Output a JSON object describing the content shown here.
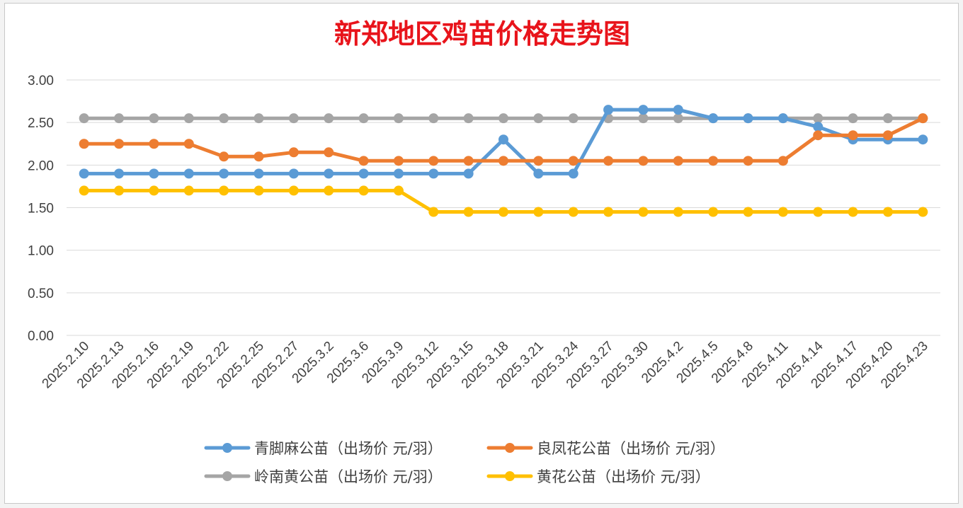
{
  "chart_data": {
    "type": "line",
    "title": "新郑地区鸡苗价格走势图",
    "xlabel": "",
    "ylabel": "",
    "ylim": [
      0,
      3
    ],
    "y_ticks": [
      "0.00",
      "0.50",
      "1.00",
      "1.50",
      "2.00",
      "2.50",
      "3.00"
    ],
    "grid": true,
    "legend_position": "bottom",
    "categories": [
      "2025.2.10",
      "2025.2.13",
      "2025.2.16",
      "2025.2.19",
      "2025.2.22",
      "2025.2.25",
      "2025.2.27",
      "2025.3.2",
      "2025.3.6",
      "2025.3.9",
      "2025.3.12",
      "2025.3.15",
      "2025.3.18",
      "2025.3.21",
      "2025.3.24",
      "2025.3.27",
      "2025.3.30",
      "2025.4.2",
      "2025.4.5",
      "2025.4.8",
      "2025.4.11",
      "2025.4.14",
      "2025.4.17",
      "2025.4.20",
      "2025.4.23"
    ],
    "series": [
      {
        "name": "青脚麻公苗（出场价 元/羽）",
        "color": "#5b9bd5",
        "values": [
          1.9,
          1.9,
          1.9,
          1.9,
          1.9,
          1.9,
          1.9,
          1.9,
          1.9,
          1.9,
          1.9,
          1.9,
          2.3,
          1.9,
          1.9,
          2.65,
          2.65,
          2.65,
          2.55,
          2.55,
          2.55,
          2.45,
          2.3,
          2.3,
          2.3
        ]
      },
      {
        "name": "良凤花公苗（出场价 元/羽）",
        "color": "#ed7d31",
        "values": [
          2.25,
          2.25,
          2.25,
          2.25,
          2.1,
          2.1,
          2.15,
          2.15,
          2.05,
          2.05,
          2.05,
          2.05,
          2.05,
          2.05,
          2.05,
          2.05,
          2.05,
          2.05,
          2.05,
          2.05,
          2.05,
          2.35,
          2.35,
          2.35,
          2.55
        ]
      },
      {
        "name": "岭南黄公苗（出场价 元/羽）",
        "color": "#a5a5a5",
        "values": [
          2.55,
          2.55,
          2.55,
          2.55,
          2.55,
          2.55,
          2.55,
          2.55,
          2.55,
          2.55,
          2.55,
          2.55,
          2.55,
          2.55,
          2.55,
          2.55,
          2.55,
          2.55,
          2.55,
          2.55,
          2.55,
          2.55,
          2.55,
          2.55,
          2.55
        ]
      },
      {
        "name": "黄花公苗（出场价 元/羽）",
        "color": "#ffc000",
        "values": [
          1.7,
          1.7,
          1.7,
          1.7,
          1.7,
          1.7,
          1.7,
          1.7,
          1.7,
          1.7,
          1.45,
          1.45,
          1.45,
          1.45,
          1.45,
          1.45,
          1.45,
          1.45,
          1.45,
          1.45,
          1.45,
          1.45,
          1.45,
          1.45,
          1.45
        ]
      }
    ]
  }
}
